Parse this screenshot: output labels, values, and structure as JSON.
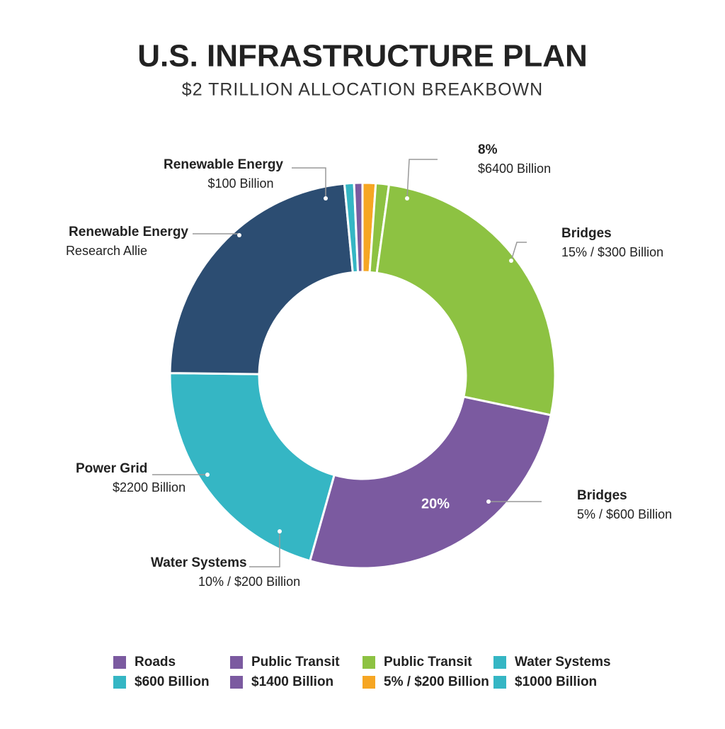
{
  "chart_data": {
    "type": "pie",
    "title": "U.S. INFRASTRUCTURE PLAN",
    "subtitle": "$2 TRILLION ALLOCATION BREAKBOWN",
    "categories": [
      null,
      null,
      null,
      null,
      null,
      null,
      null,
      null
    ],
    "values": [
      1.1,
      1.1,
      26.1,
      26.1,
      20.8,
      23.3,
      0.8,
      0.7
    ],
    "colors": [
      "#f6a623",
      "#8dc242",
      "#8dc242",
      "#7b5aa0",
      "#35b6c4",
      "#2c4d72",
      "#35b6c4",
      "#7b5aa0"
    ],
    "slice_text": "20%",
    "annotations": [
      {
        "title": "Renewable Energy",
        "text": "$100 Billion"
      },
      {
        "title": "Renewable Energy",
        "text": "Research Allie"
      },
      {
        "title": "Power Grid",
        "text": "$2200 Billion"
      },
      {
        "title": "Water Systems",
        "text": "10% / $200 Billion"
      },
      {
        "title": "8%",
        "text": "$6400 Billion"
      },
      {
        "title": "Bridges",
        "text": "15% / $300 Billion"
      },
      {
        "title": "Bridges",
        "text": "5% / $600 Billion"
      }
    ],
    "legend": [
      {
        "label": "Roads",
        "color": "#7b5aa0"
      },
      {
        "label": "Public Transit",
        "color": "#7b5aa0"
      },
      {
        "label": "Public Transit",
        "color": "#8dc242"
      },
      {
        "label": "Water Systems",
        "color": "#35b6c4"
      },
      {
        "label": "$600 Billion",
        "color": "#35b6c4"
      },
      {
        "label": "$1400 Billion",
        "color": "#7b5aa0"
      },
      {
        "label": "5% / $200 Billion",
        "color": "#f6a623"
      },
      {
        "label": "$1000 Billion",
        "color": "#35b6c4"
      }
    ]
  }
}
